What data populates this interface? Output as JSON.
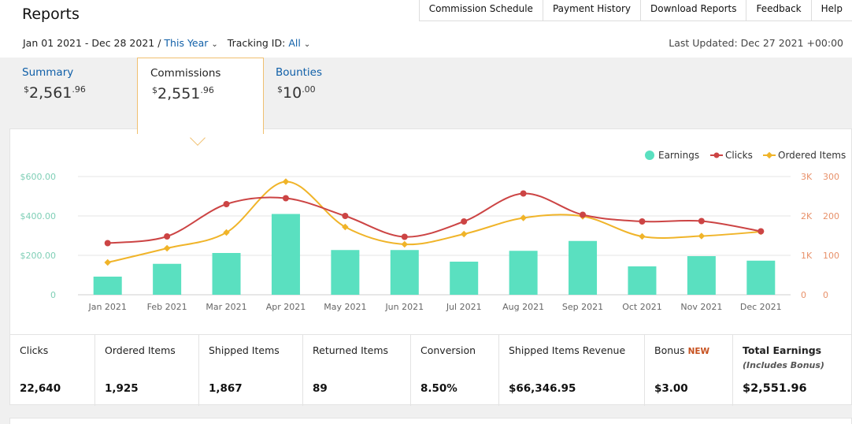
{
  "header": {
    "title": "Reports",
    "nav": [
      "Commission Schedule",
      "Payment History",
      "Download Reports",
      "Feedback",
      "Help"
    ],
    "date_range": "Jan 01 2021 - Dec 28 2021 /",
    "period": "This Year",
    "tracking_label": "Tracking ID:",
    "tracking_value": "All",
    "last_updated": "Last Updated: Dec 27 2021 +00:00"
  },
  "tabs": {
    "summary": {
      "label": "Summary",
      "currency": "$",
      "whole": "2,561",
      "cents": ".96"
    },
    "commissions": {
      "label": "Commissions",
      "currency": "$",
      "whole": "2,551",
      "cents": ".96"
    },
    "bounties": {
      "label": "Bounties",
      "currency": "$",
      "whole": "10",
      "cents": ".00"
    }
  },
  "chart_data": {
    "type": "bar",
    "categories": [
      "Jan 2021",
      "Feb 2021",
      "Mar 2021",
      "Apr 2021",
      "May 2021",
      "Jun 2021",
      "Jul 2021",
      "Aug 2021",
      "Sep 2021",
      "Oct 2021",
      "Nov 2021",
      "Dec 2021"
    ],
    "series": [
      {
        "name": "Earnings",
        "type": "bar",
        "axis": "left",
        "color": "#5ae0c0",
        "values": [
          92,
          157,
          212,
          410,
          227,
          227,
          168,
          223,
          273,
          144,
          196,
          173
        ]
      },
      {
        "name": "Clicks",
        "type": "line",
        "axis": "right-1",
        "color": "#cc4444",
        "values": [
          1310,
          1480,
          2300,
          2450,
          2000,
          1470,
          1860,
          2570,
          2030,
          1860,
          1870,
          1610
        ]
      },
      {
        "name": "Ordered Items",
        "type": "line",
        "axis": "right-2",
        "color": "#f0b429",
        "values": [
          82,
          118,
          158,
          287,
          172,
          128,
          154,
          195,
          199,
          148,
          149,
          160
        ]
      }
    ],
    "y_left": {
      "ticks": [
        "0",
        "$200.00",
        "$400.00",
        "$600.00"
      ],
      "range": [
        0,
        600
      ]
    },
    "y_right_1": {
      "ticks": [
        "0",
        "1K",
        "2K",
        "3K"
      ],
      "range": [
        0,
        3000
      ]
    },
    "y_right_2": {
      "ticks": [
        "0",
        "100",
        "200",
        "300"
      ],
      "range": [
        0,
        300
      ]
    },
    "legend_position": "top-right",
    "grid": true
  },
  "metrics": [
    {
      "label": "Clicks",
      "value": "22,640"
    },
    {
      "label": "Ordered Items",
      "value": "1,925"
    },
    {
      "label": "Shipped Items",
      "value": "1,867"
    },
    {
      "label": "Returned Items",
      "value": "89"
    },
    {
      "label": "Conversion",
      "value": "8.50%"
    },
    {
      "label": "Shipped Items Revenue",
      "value": "$66,346.95"
    },
    {
      "label": "Bonus",
      "badge": "NEW",
      "value": "$3.00"
    },
    {
      "label": "Total Earnings",
      "note": "(Includes Bonus)",
      "value": "$2,551.96"
    }
  ]
}
